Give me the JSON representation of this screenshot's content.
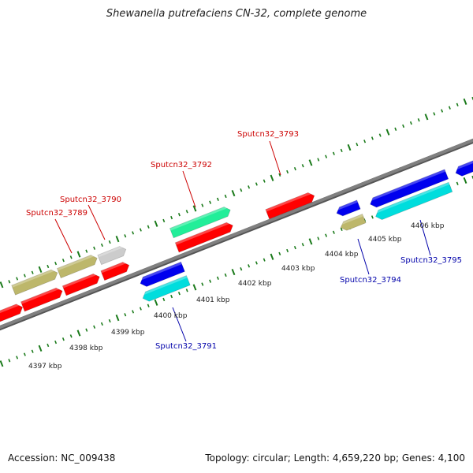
{
  "title": "Shewanella putrefaciens CN-32, complete genome",
  "footer": {
    "accession": "Accession: NC_009438",
    "summary": "Topology: circular; Length: 4,659,220 bp; Genes: 4,100"
  },
  "colors": {
    "backbone": "#808080",
    "ticks": "#1a7a1a",
    "label_forward": "#cc0000",
    "label_reverse": "#0000aa"
  },
  "kbp_labels": [
    "4397 kbp",
    "4398 kbp",
    "4399 kbp",
    "4400 kbp",
    "4401 kbp",
    "4402 kbp",
    "4403 kbp",
    "4404 kbp",
    "4405 kbp",
    "4406 kbp"
  ],
  "gene_labels": [
    {
      "text": "Sputcn32_3789",
      "strand": "forward"
    },
    {
      "text": "Sputcn32_3790",
      "strand": "forward"
    },
    {
      "text": "Sputcn32_3792",
      "strand": "forward"
    },
    {
      "text": "Sputcn32_3793",
      "strand": "forward"
    },
    {
      "text": "Sputcn32_3791",
      "strand": "reverse"
    },
    {
      "text": "Sputcn32_3794",
      "strand": "reverse"
    },
    {
      "text": "Sputcn32_3795",
      "strand": "reverse"
    }
  ],
  "features": [
    {
      "name": "feature-forward-1",
      "color": "#ff0000",
      "strand": "forward"
    },
    {
      "name": "feature-forward-2",
      "color": "#ff0000",
      "strand": "forward"
    },
    {
      "name": "feature-forward-3",
      "color": "#ff0000",
      "strand": "forward"
    },
    {
      "name": "feature-forward-4",
      "color": "#ff0000",
      "strand": "forward"
    },
    {
      "name": "feature-forward-5",
      "color": "#ff0000",
      "strand": "forward"
    },
    {
      "name": "feature-forward-6",
      "color": "#ff0000",
      "strand": "forward"
    },
    {
      "name": "feature-forward-7",
      "color": "#bdb76b",
      "strand": "forward"
    },
    {
      "name": "feature-forward-8",
      "color": "#bdb76b",
      "strand": "forward"
    },
    {
      "name": "feature-forward-9",
      "color": "#cccccc",
      "strand": "forward"
    },
    {
      "name": "feature-forward-10",
      "color": "#22ee99",
      "strand": "forward"
    },
    {
      "name": "feature-reverse-1",
      "color": "#0000ee",
      "strand": "reverse"
    },
    {
      "name": "feature-reverse-2",
      "color": "#00dddd",
      "strand": "reverse"
    },
    {
      "name": "feature-reverse-3",
      "color": "#0000ee",
      "strand": "reverse"
    },
    {
      "name": "feature-reverse-4",
      "color": "#bdb76b",
      "strand": "reverse"
    },
    {
      "name": "feature-reverse-5",
      "color": "#0000ee",
      "strand": "reverse"
    },
    {
      "name": "feature-reverse-6",
      "color": "#00dddd",
      "strand": "reverse"
    },
    {
      "name": "feature-reverse-7",
      "color": "#0000ee",
      "strand": "reverse"
    }
  ]
}
